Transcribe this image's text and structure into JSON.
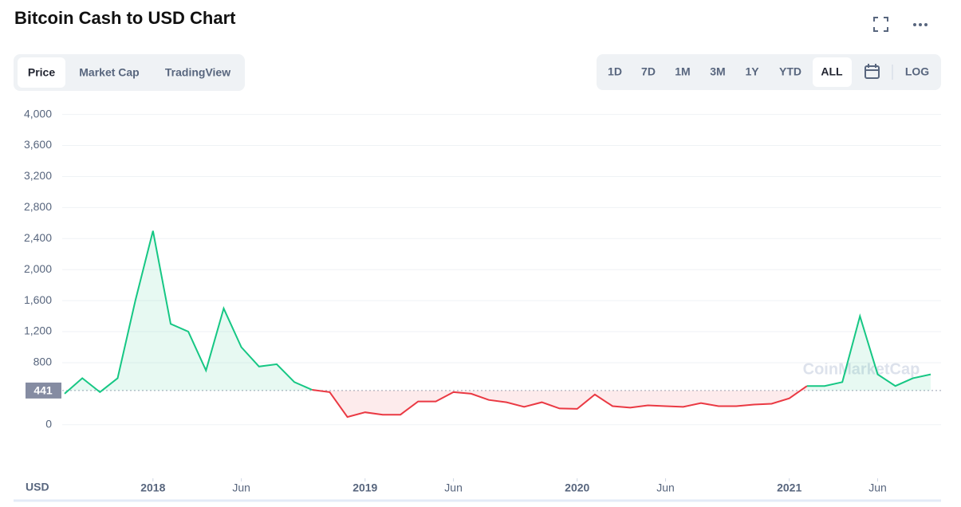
{
  "header": {
    "title": "Bitcoin Cash to USD Chart",
    "tabs": [
      "Price",
      "Market Cap",
      "TradingView"
    ],
    "active_tab": 0,
    "ranges": [
      "1D",
      "7D",
      "1M",
      "3M",
      "1Y",
      "YTD",
      "ALL"
    ],
    "active_range": 6,
    "log_button": "LOG"
  },
  "chart_data": {
    "type": "line",
    "currency_label": "USD",
    "watermark": "CoinMarketCap",
    "x": [
      "2017-08",
      "2017-09",
      "2017-10",
      "2017-11",
      "2017-12",
      "2018-01",
      "2018-02",
      "2018-03",
      "2018-04",
      "2018-05",
      "2018-06",
      "2018-07",
      "2018-08",
      "2018-09",
      "2018-10",
      "2018-11",
      "2018-12",
      "2019-01",
      "2019-02",
      "2019-03",
      "2019-04",
      "2019-05",
      "2019-06",
      "2019-07",
      "2019-08",
      "2019-09",
      "2019-10",
      "2019-11",
      "2019-12",
      "2020-01",
      "2020-02",
      "2020-03",
      "2020-04",
      "2020-05",
      "2020-06",
      "2020-07",
      "2020-08",
      "2020-09",
      "2020-10",
      "2020-11",
      "2020-12",
      "2021-01",
      "2021-02",
      "2021-03",
      "2021-04",
      "2021-05",
      "2021-06",
      "2021-07",
      "2021-08",
      "2021-09"
    ],
    "values": [
      400,
      600,
      420,
      600,
      1600,
      2500,
      1300,
      1200,
      700,
      1500,
      1000,
      750,
      780,
      550,
      450,
      420,
      100,
      160,
      130,
      130,
      300,
      300,
      420,
      400,
      320,
      290,
      230,
      290,
      210,
      205,
      390,
      240,
      220,
      250,
      240,
      230,
      280,
      240,
      240,
      260,
      270,
      340,
      500,
      500,
      550,
      1400,
      650,
      500,
      600,
      650
    ],
    "color": "#16c784",
    "color_below": "#ea3943",
    "baseline": 441,
    "xlim": [
      "2017-08",
      "2021-09"
    ],
    "xticks": [
      {
        "value": "2018-01",
        "label": "2018"
      },
      {
        "value": "2018-06",
        "label": "Jun"
      },
      {
        "value": "2019-01",
        "label": "2019"
      },
      {
        "value": "2019-06",
        "label": "Jun"
      },
      {
        "value": "2020-01",
        "label": "2020"
      },
      {
        "value": "2020-06",
        "label": "Jun"
      },
      {
        "value": "2021-01",
        "label": "2021"
      },
      {
        "value": "2021-06",
        "label": "Jun"
      }
    ],
    "ylim": [
      -300,
      4150
    ],
    "yticks": [
      0,
      800,
      {
        "value": 1200,
        "label": "1,200"
      },
      {
        "value": 1600,
        "label": "1,600"
      },
      {
        "value": 2000,
        "label": "2,000"
      },
      {
        "value": 2400,
        "label": "2,400"
      },
      {
        "value": 2800,
        "label": "2,800"
      },
      {
        "value": 3200,
        "label": "3,200"
      },
      {
        "value": 3600,
        "label": "3,600"
      },
      {
        "value": 4000,
        "label": "4,000"
      }
    ],
    "grid": true
  }
}
